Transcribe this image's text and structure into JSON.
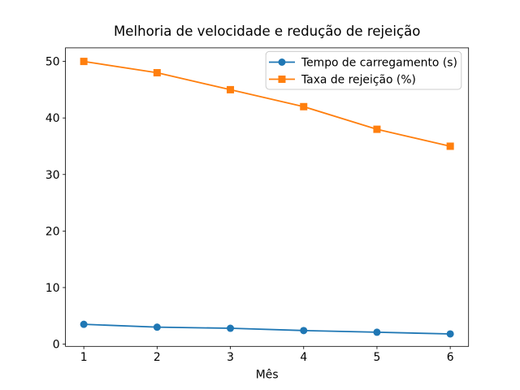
{
  "chart_data": {
    "type": "line",
    "title": "Melhoria de velocidade e redução de rejeição",
    "xlabel": "Mês",
    "ylabel": "",
    "x": [
      1,
      2,
      3,
      4,
      5,
      6
    ],
    "xticks": [
      1,
      2,
      3,
      4,
      5,
      6
    ],
    "yticks": [
      0,
      10,
      20,
      30,
      40,
      50
    ],
    "xlim": [
      0.75,
      6.25
    ],
    "ylim": [
      -0.4,
      52.4
    ],
    "grid": false,
    "legend_position": "upper right",
    "series": [
      {
        "name": "Tempo de carregamento (s)",
        "color": "#1f77b4",
        "marker": "circle",
        "values": [
          3.5,
          3.0,
          2.8,
          2.4,
          2.1,
          1.8
        ]
      },
      {
        "name": "Taxa de rejeição (%)",
        "color": "#ff7f0e",
        "marker": "square",
        "values": [
          50,
          48,
          45,
          42,
          38,
          35
        ]
      }
    ],
    "colors": {
      "spine": "#000000",
      "tick": "#000000",
      "legend_border": "#cccccc",
      "legend_background": "#ffffff",
      "figure_background": "#ffffff"
    }
  }
}
